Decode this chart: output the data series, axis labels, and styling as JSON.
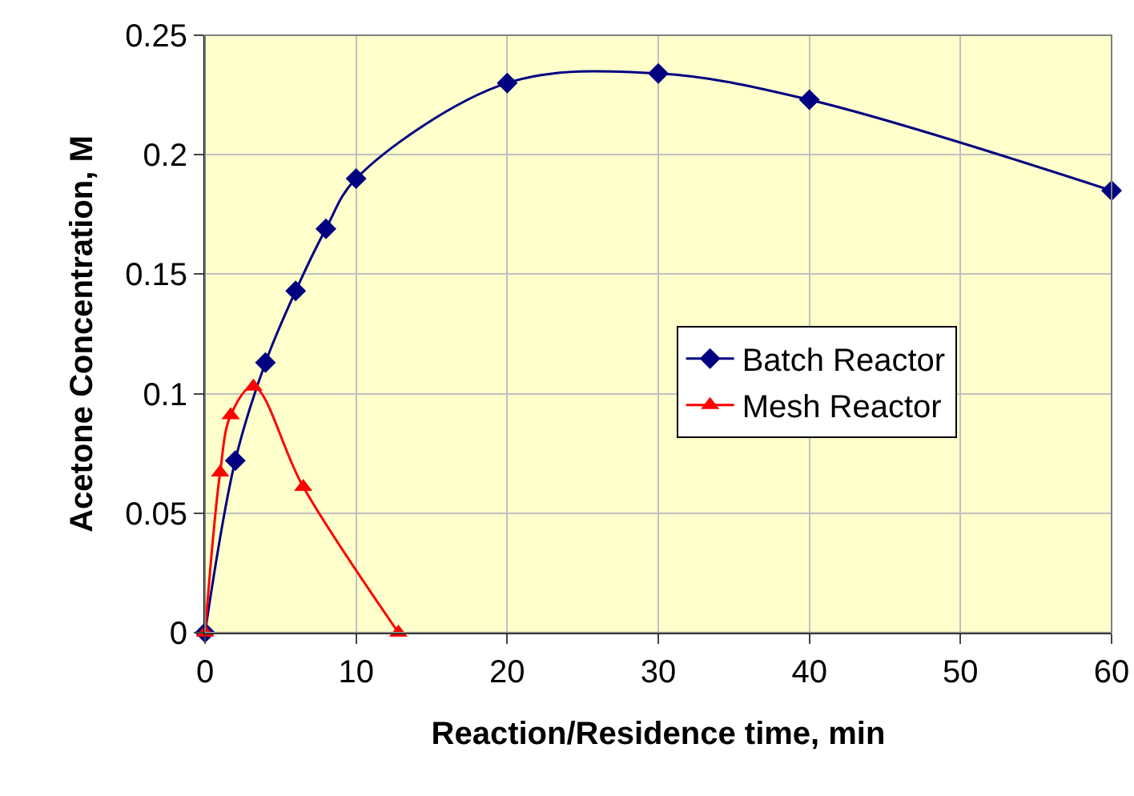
{
  "chart_data": {
    "type": "line",
    "xlabel": "Reaction/Residence time, min",
    "ylabel": "Acetone Concentration, M",
    "xlim": [
      0,
      60
    ],
    "xticks": [
      0,
      10,
      20,
      30,
      40,
      50,
      60
    ],
    "ylim": [
      0,
      0.25
    ],
    "yticks": [
      0,
      0.05,
      0.1,
      0.15,
      0.2,
      0.25
    ],
    "grid": true,
    "legend": "right",
    "series": [
      {
        "name": "Batch Reactor",
        "color": "#000080",
        "marker": "diamond",
        "x": [
          0,
          2,
          4,
          6,
          8,
          10,
          20,
          30,
          40,
          60
        ],
        "values": [
          0,
          0.072,
          0.113,
          0.143,
          0.169,
          0.19,
          0.23,
          0.234,
          0.223,
          0.185
        ]
      },
      {
        "name": "Mesh Reactor",
        "color": "#ff0000",
        "marker": "triangle",
        "x": [
          0,
          1,
          1.7,
          3.2,
          6.5,
          12.8
        ],
        "values": [
          0,
          0.067,
          0.091,
          0.103,
          0.061,
          0
        ]
      }
    ]
  }
}
